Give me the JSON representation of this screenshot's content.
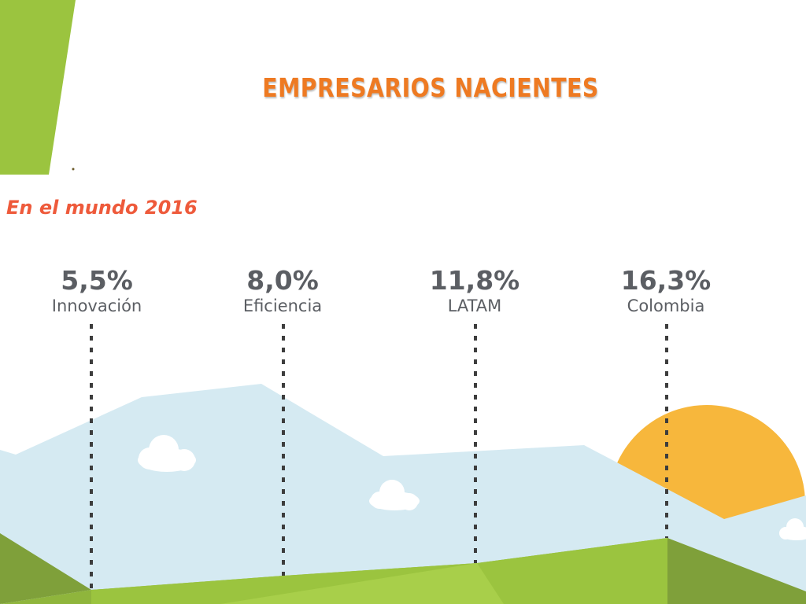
{
  "title": "EMPRESARIOS NACIENTES",
  "subtitle": "En el mundo 2016",
  "stats": [
    {
      "value": "5,5%",
      "label": "Innovación"
    },
    {
      "value": "8,0%",
      "label": "Eficiencia"
    },
    {
      "value": "11,8%",
      "label": "LATAM"
    },
    {
      "value": "16,3%",
      "label": "Colombia"
    }
  ],
  "colors": {
    "accent_green": "#9bc43f",
    "title_orange": "#ee7a22",
    "subtitle_red": "#ee5a3b",
    "stat_gray": "#5b5e63",
    "sky_blue": "#d5eaf2",
    "sun_orange": "#f7b73c"
  },
  "icons": [
    "cloud-icon",
    "sun",
    "mountains",
    "hills"
  ]
}
